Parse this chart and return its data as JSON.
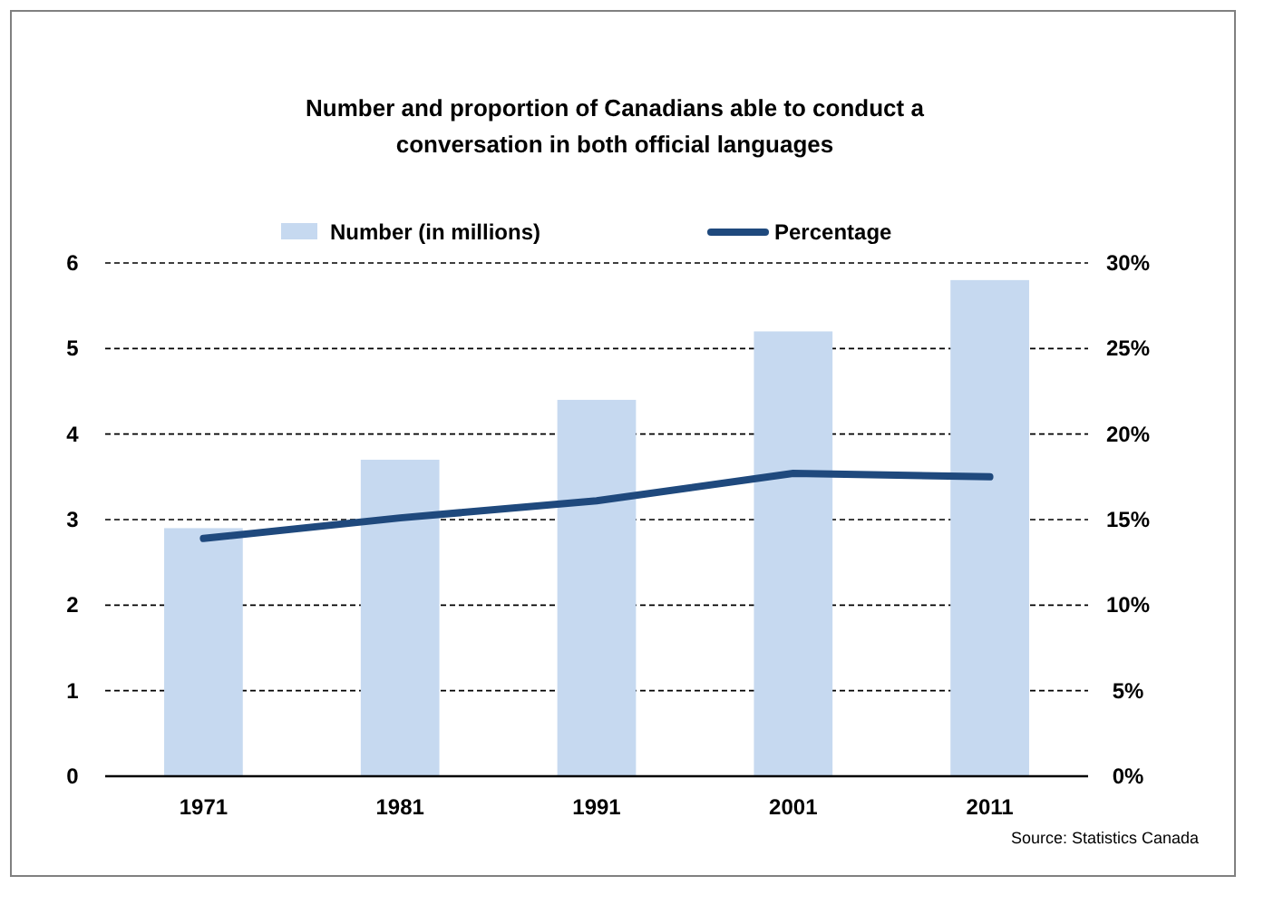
{
  "chart_data": {
    "type": "bar",
    "title": "Number and proportion of Canadians able to conduct a conversation in both official languages",
    "categories": [
      "1971",
      "1981",
      "1991",
      "2001",
      "2011"
    ],
    "series": [
      {
        "name": "Number (in millions)",
        "color": "#c6d9f0",
        "values": [
          2.9,
          3.7,
          4.4,
          5.2,
          5.8
        ]
      },
      {
        "name": "Percentage",
        "type": "line",
        "axis": "y2",
        "color": "#1f497d",
        "values": [
          13.9,
          15.1,
          16.1,
          17.7,
          17.5
        ]
      }
    ],
    "ylim": [
      0,
      6
    ],
    "yticks": [
      0,
      1,
      2,
      3,
      4,
      5,
      6
    ],
    "y2lim": [
      0,
      30
    ],
    "y2ticks": [
      {
        "value": 0,
        "label": "0%"
      },
      {
        "value": 5,
        "label": "5%"
      },
      {
        "value": 10,
        "label": "10%"
      },
      {
        "value": 15,
        "label": "15%"
      },
      {
        "value": 20,
        "label": "20%"
      },
      {
        "value": 25,
        "label": "25%"
      },
      {
        "value": 30,
        "label": "30%"
      }
    ],
    "grid": "y",
    "legend": "top",
    "marker": "none",
    "line_style": "solid",
    "annotations": [
      "Source: Statistics Canada"
    ]
  }
}
